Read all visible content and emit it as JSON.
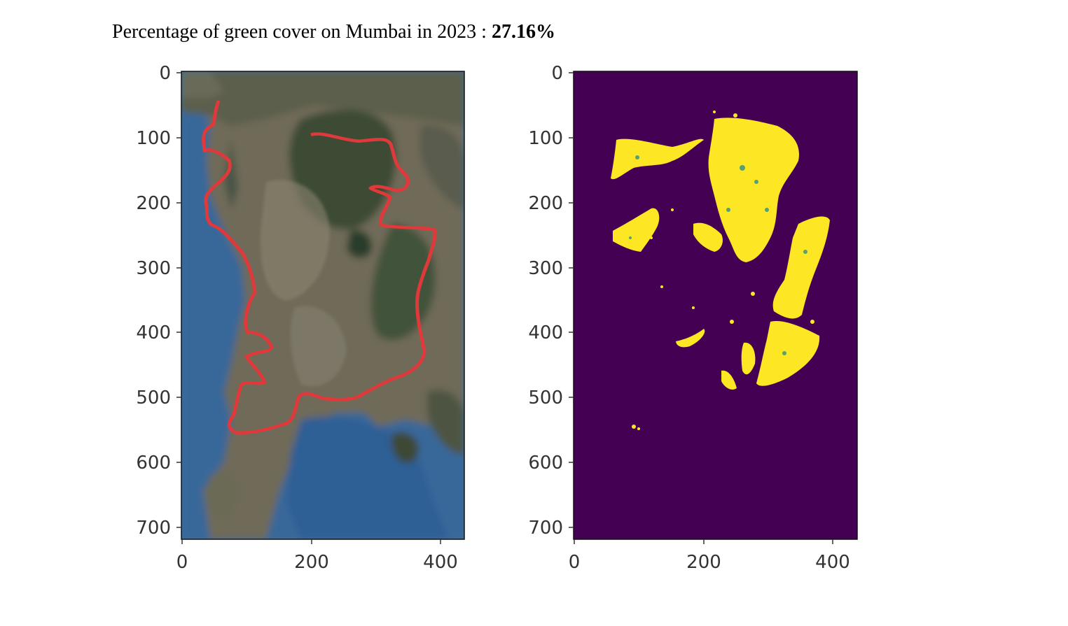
{
  "header": {
    "prefix": "Percentage of green cover on Mumbai in 2023 : ",
    "percentage": "27.16%"
  },
  "colors": {
    "mask_background": "#440154",
    "mask_foreground": "#fde725",
    "boundary": "#e0393b",
    "sea": "#3d6f9c",
    "land": "#6f6b58",
    "forest": "#3b4a32"
  },
  "panels": [
    {
      "name": "satellite-image",
      "content": "satellite image with city boundary outline",
      "x_ticks": [
        "0",
        "200",
        "400"
      ],
      "y_ticks": [
        "0",
        "100",
        "200",
        "300",
        "400",
        "500",
        "600",
        "700"
      ]
    },
    {
      "name": "green-cover-mask",
      "content": "binary vegetation mask",
      "x_ticks": [
        "0",
        "200",
        "400"
      ],
      "y_ticks": [
        "0",
        "100",
        "200",
        "300",
        "400",
        "500",
        "600",
        "700"
      ]
    }
  ],
  "chart_data": [
    {
      "type": "heatmap",
      "title": "",
      "xlabel": "",
      "ylabel": "",
      "xlim": [
        0,
        440
      ],
      "ylim": [
        725,
        0
      ],
      "x_ticks": [
        0,
        200,
        400
      ],
      "y_ticks": [
        0,
        100,
        200,
        300,
        400,
        500,
        600,
        700
      ],
      "grid": false,
      "legend": "none"
    },
    {
      "type": "heatmap",
      "title": "",
      "xlabel": "",
      "ylabel": "",
      "xlim": [
        0,
        440
      ],
      "ylim": [
        725,
        0
      ],
      "x_ticks": [
        0,
        200,
        400
      ],
      "y_ticks": [
        0,
        100,
        200,
        300,
        400,
        500,
        600,
        700
      ],
      "grid": false,
      "legend": "none"
    }
  ]
}
